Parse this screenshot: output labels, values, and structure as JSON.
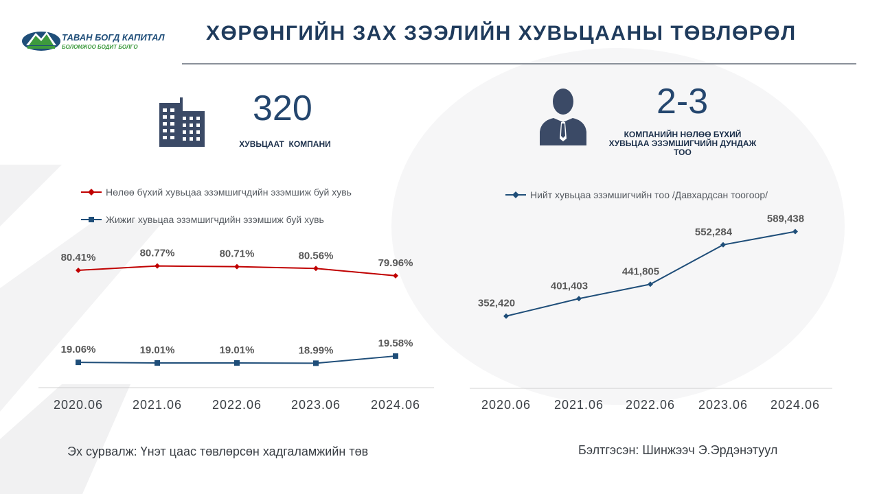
{
  "header": {
    "logo_text": "ТАВАН БОГД КАПИТАЛ",
    "logo_tagline": "БОЛОМЖОО БОДИТ БОЛГО",
    "title": "ХӨРӨНГИЙН ЗАХ ЗЭЭЛИЙН ХУВЬЦААНЫ ТӨВЛӨРӨЛ"
  },
  "stats": {
    "companies": {
      "value": "320",
      "label": "ХУВЬЦААТ  КОМПАНИ",
      "icon": "building-icon"
    },
    "holders": {
      "value": "2-3",
      "label_lines": [
        "КОМПАНИЙН НӨЛӨӨ БҮХИЙ",
        "ХУВЬЦАА ЭЗЭМШИГЧИЙН ДУНДАЖ",
        "ТОО"
      ],
      "icon": "businessman-icon"
    }
  },
  "colors": {
    "navy": "#1f4e79",
    "red": "#c00000",
    "dark": "#24466e"
  },
  "chart_data": [
    {
      "type": "line",
      "categories": [
        "2020.06",
        "2021.06",
        "2022.06",
        "2023.06",
        "2024.06"
      ],
      "series": [
        {
          "name": "Нөлөө бүхий хувьцаа эзэмшигчдийн эзэмшиж буй хувь",
          "values": [
            80.41,
            80.77,
            80.71,
            80.56,
            79.96
          ],
          "labels": [
            "80.41%",
            "80.77%",
            "80.71%",
            "80.56%",
            "79.96%"
          ],
          "color": "#c00000",
          "marker": "diamond"
        },
        {
          "name": "Жижиг хувьцаа эзэмшигчдийн эзэмшиж буй хувь",
          "values": [
            19.06,
            19.01,
            19.01,
            18.99,
            19.58
          ],
          "labels": [
            "19.06%",
            "19.01%",
            "19.01%",
            "18.99%",
            "19.58%"
          ],
          "color": "#1f4e79",
          "marker": "square"
        }
      ],
      "legend": "top",
      "grid": false
    },
    {
      "type": "line",
      "categories": [
        "2020.06",
        "2021.06",
        "2022.06",
        "2023.06",
        "2024.06"
      ],
      "series": [
        {
          "name": "Нийт хувьцаа эзэмшигчийн тоо /Давхардсан тоогоор/",
          "values": [
            352420,
            401403,
            441805,
            552284,
            589438
          ],
          "labels": [
            "352,420",
            "401,403",
            "441,805",
            "552,284",
            "589,438"
          ],
          "color": "#1f4e79",
          "marker": "diamond"
        }
      ],
      "legend": "top",
      "grid": false
    }
  ],
  "footer": {
    "source": "Эх сурвалж: Үнэт цаас төвлөрсөн хадгаламжийн төв",
    "prepared": "Бэлтгэсэн: Шинжээч Э.Эрдэнэтуул"
  }
}
